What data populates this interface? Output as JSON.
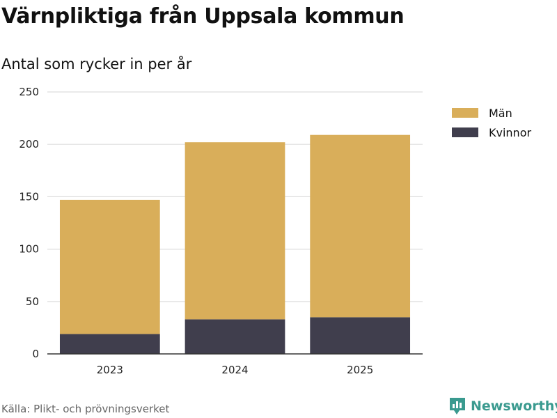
{
  "title": "Värnpliktiga från Uppsala kommun",
  "subtitle": "Antal som rycker in per år",
  "source": "Källa: Plikt- och prövningsverket",
  "brand": "Newsworthy",
  "colors": {
    "man": "#d9ae5a",
    "kvinnor": "#403e4d",
    "grid": "#dddddd",
    "brand": "#3a9a8f"
  },
  "legend": [
    {
      "label": "Män",
      "color": "#d9ae5a"
    },
    {
      "label": "Kvinnor",
      "color": "#403e4d"
    }
  ],
  "chart_data": {
    "type": "bar",
    "stacked": true,
    "title": "Värnpliktiga från Uppsala kommun",
    "subtitle": "Antal som rycker in per år",
    "categories": [
      "2023",
      "2024",
      "2025"
    ],
    "series": [
      {
        "name": "Kvinnor",
        "values": [
          19,
          33,
          35
        ]
      },
      {
        "name": "Män",
        "values": [
          128,
          169,
          174
        ]
      }
    ],
    "ylim": [
      0,
      250
    ],
    "yticks": [
      "0",
      "50",
      "100",
      "150",
      "200",
      "250"
    ],
    "grid": true,
    "legend_position": "right"
  }
}
